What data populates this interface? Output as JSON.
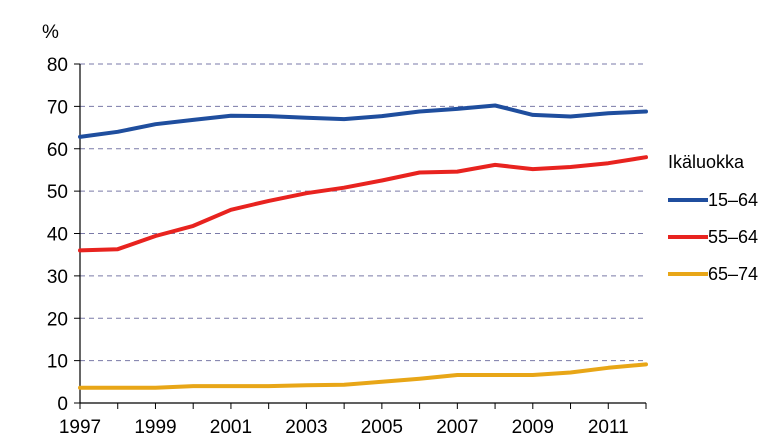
{
  "chart_data": {
    "type": "line",
    "title": "",
    "xlabel": "",
    "ylabel": "%",
    "ylim": [
      0,
      80
    ],
    "xlim": [
      1997,
      2012
    ],
    "y_ticks": [
      "0",
      "10",
      "20",
      "30",
      "40",
      "50",
      "60",
      "70",
      "80"
    ],
    "x_ticks": [
      "1997",
      "1999",
      "2001",
      "2003",
      "2005",
      "2007",
      "2009",
      "2011"
    ],
    "grid": "horizontal-dashed",
    "legend": {
      "title": "Ikäluokka",
      "placement": "right"
    },
    "x": [
      1997,
      1998,
      1999,
      2000,
      2001,
      2002,
      2003,
      2004,
      2005,
      2006,
      2007,
      2008,
      2009,
      2010,
      2011,
      2012
    ],
    "series": [
      {
        "name": "15–64",
        "color": "#1f4e9e",
        "values": [
          62.8,
          64.0,
          65.8,
          66.8,
          67.8,
          67.7,
          67.3,
          67.0,
          67.7,
          68.8,
          69.4,
          70.2,
          68.0,
          67.6,
          68.4,
          68.8
        ]
      },
      {
        "name": "55–64",
        "color": "#e8231f",
        "values": [
          36.0,
          36.3,
          39.4,
          41.8,
          45.6,
          47.7,
          49.5,
          50.8,
          52.5,
          54.4,
          54.6,
          56.2,
          55.2,
          55.7,
          56.6,
          58.0
        ]
      },
      {
        "name": "65–74",
        "color": "#e8a617",
        "values": [
          3.6,
          3.6,
          3.6,
          4.0,
          4.0,
          4.0,
          4.2,
          4.3,
          5.0,
          5.7,
          6.6,
          6.6,
          6.6,
          7.2,
          8.3,
          9.1
        ]
      }
    ]
  }
}
